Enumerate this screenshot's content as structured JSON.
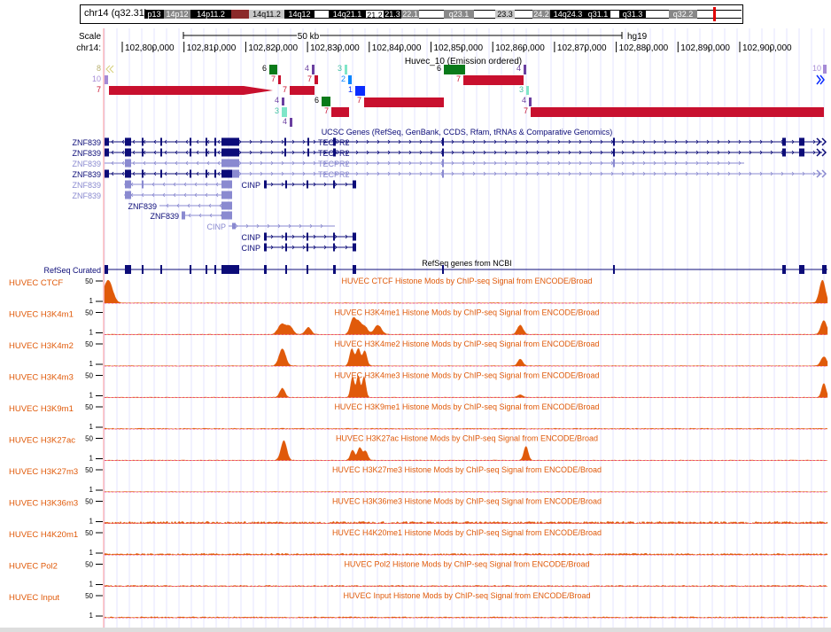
{
  "ideogram": {
    "label": "chr14 (q32.31)",
    "bands": [
      {
        "name": "p13",
        "x": 72,
        "w": 22,
        "fill": "#000",
        "text": "#fff"
      },
      {
        "name": "14p12",
        "x": 94,
        "w": 30,
        "fill": "#888",
        "text": "#fff"
      },
      {
        "name": "14p11.2",
        "x": 124,
        "w": 46,
        "fill": "#000",
        "text": "#fff"
      },
      {
        "name": "",
        "x": 170,
        "w": 20,
        "fill": "#8b2a2a",
        "text": "#fff"
      },
      {
        "name": "14q11.2",
        "x": 190,
        "w": 40,
        "fill": "#c8c8c8",
        "text": "#000"
      },
      {
        "name": "14q12",
        "x": 230,
        "w": 34,
        "fill": "#000",
        "text": "#fff"
      },
      {
        "name": "",
        "x": 264,
        "w": 16,
        "fill": "#fff",
        "text": "#000"
      },
      {
        "name": "14q21.1",
        "x": 280,
        "w": 42,
        "fill": "#000",
        "text": "#fff"
      },
      {
        "name": "21.2",
        "x": 322,
        "w": 20,
        "fill": "#fff",
        "text": "#000"
      },
      {
        "name": "21.3",
        "x": 342,
        "w": 20,
        "fill": "#000",
        "text": "#fff"
      },
      {
        "name": "22.1",
        "x": 362,
        "w": 20,
        "fill": "#888",
        "text": "#fff"
      },
      {
        "name": "",
        "x": 382,
        "w": 28,
        "fill": "#fff",
        "text": "#000"
      },
      {
        "name": "q23.1",
        "x": 410,
        "w": 34,
        "fill": "#888",
        "text": "#fff"
      },
      {
        "name": "",
        "x": 444,
        "w": 24,
        "fill": "#fff",
        "text": "#000"
      },
      {
        "name": "23.3",
        "x": 468,
        "w": 22,
        "fill": "#c8c8c8",
        "text": "#000"
      },
      {
        "name": "",
        "x": 490,
        "w": 20,
        "fill": "#fff",
        "text": "#000"
      },
      {
        "name": "24.2",
        "x": 510,
        "w": 20,
        "fill": "#888",
        "text": "#fff"
      },
      {
        "name": "14q24.3",
        "x": 530,
        "w": 40,
        "fill": "#000",
        "text": "#fff"
      },
      {
        "name": "q31.1",
        "x": 570,
        "w": 28,
        "fill": "#000",
        "text": "#fff"
      },
      {
        "name": "",
        "x": 598,
        "w": 10,
        "fill": "#fff",
        "text": "#000"
      },
      {
        "name": "q31.3",
        "x": 608,
        "w": 30,
        "fill": "#000",
        "text": "#fff"
      },
      {
        "name": "",
        "x": 638,
        "w": 26,
        "fill": "#fff",
        "text": "#000"
      },
      {
        "name": "q32.2",
        "x": 664,
        "w": 32,
        "fill": "#888",
        "text": "#fff"
      },
      {
        "name": "",
        "x": 696,
        "w": 50,
        "fill": "#fff",
        "text": "#000"
      }
    ],
    "highlight_color": "#e00000"
  },
  "scale": {
    "label": "Scale",
    "chrom_label": "chr14:",
    "bar_label": "50 kb",
    "assembly": "hg19",
    "ticks": [
      "102,800,000",
      "102,810,000",
      "102,820,000",
      "102,830,000",
      "102,840,000",
      "102,850,000",
      "102,860,000",
      "102,870,000",
      "102,880,000",
      "102,890,000",
      "102,900,000"
    ]
  },
  "segmentation": {
    "title": "Huvec_10 (Emission ordered)",
    "colors": {
      "1": "#0a2bff",
      "2": "#0a86ff",
      "3": "#7fe6c8",
      "4": "#6a3fa0",
      "6": "#0a7a1a",
      "7": "#c8102e",
      "8": "#d6cf7a",
      "10": "#a58ad6"
    }
  },
  "ucsc_genes": {
    "title": "UCSC Genes (RefSeq, GenBank, CCDS, Rfam, tRNAs & Comparative Genomics)",
    "left_labels": [
      "ZNF839",
      "ZNF839",
      "ZNF839",
      "ZNF839",
      "ZNF839",
      "ZNF839",
      "ZNF839",
      "ZNF839"
    ],
    "right_labels": [
      "TECPR2",
      "TECPR2",
      "TECPR2",
      "TECPR2"
    ],
    "cinp_labels": [
      "CINP",
      "CINP",
      "CINP",
      "CINP"
    ]
  },
  "refseq": {
    "label": "RefSeq Curated",
    "title": "RefSeq genes from NCBI"
  },
  "signal_tracks": [
    {
      "label": "HUVEC CTCF",
      "title": "HUVEC CTCF Histone Mods by ChIP-seq Signal from ENCODE/Broad",
      "max": "50",
      "min": "1",
      "peaks": [
        [
          0.5,
          1.0,
          1.2
        ],
        [
          99.3,
          1.0,
          0.8
        ]
      ],
      "noise": 0.05
    },
    {
      "label": "HUVEC H3K4m1",
      "title": "HUVEC H3K4me1 Histone Mods by ChIP-seq Signal from ENCODE/Broad",
      "max": "50",
      "min": "1",
      "peaks": [
        [
          24.5,
          0.45,
          1.0
        ],
        [
          25.6,
          0.35,
          0.9
        ],
        [
          28.2,
          0.3,
          0.8
        ],
        [
          34.4,
          0.7,
          0.8
        ],
        [
          35.2,
          0.45,
          0.7
        ],
        [
          36.0,
          0.35,
          0.8
        ],
        [
          37.8,
          0.4,
          1.0
        ],
        [
          57.5,
          0.4,
          0.8
        ],
        [
          99.5,
          0.6,
          0.8
        ]
      ],
      "noise": 0.05
    },
    {
      "label": "HUVEC H3K4m2",
      "title": "HUVEC H3K4me2 Histone Mods by ChIP-seq Signal from ENCODE/Broad",
      "max": "50",
      "min": "1",
      "peaks": [
        [
          24.6,
          0.75,
          0.9
        ],
        [
          34.2,
          0.75,
          0.6
        ],
        [
          35.1,
          0.75,
          0.6
        ],
        [
          36.0,
          0.65,
          0.6
        ],
        [
          57.5,
          0.3,
          0.7
        ],
        [
          99.5,
          0.4,
          0.8
        ]
      ],
      "noise": 0.05
    },
    {
      "label": "HUVEC H3K4m3",
      "title": "HUVEC H3K4me3 Histone Mods by ChIP-seq Signal from ENCODE/Broad",
      "max": "50",
      "min": "1",
      "peaks": [
        [
          24.6,
          0.4,
          0.7
        ],
        [
          34.3,
          0.9,
          0.5
        ],
        [
          35.1,
          0.95,
          0.5
        ],
        [
          35.9,
          0.9,
          0.5
        ],
        [
          57.5,
          0.12,
          0.7
        ],
        [
          99.5,
          0.6,
          0.6
        ]
      ],
      "noise": 0.05
    },
    {
      "label": "HUVEC H3K9m1",
      "title": "HUVEC H3K9me1 Histone Mods by ChIP-seq Signal from ENCODE/Broad",
      "max": "50",
      "min": "1",
      "peaks": [],
      "noise": 0.08
    },
    {
      "label": "HUVEC H3K27ac",
      "title": "HUVEC H3K27ac Histone Mods by ChIP-seq Signal from ENCODE/Broad",
      "max": "50",
      "min": "1",
      "peaks": [
        [
          24.8,
          0.85,
          0.8
        ],
        [
          34.3,
          0.45,
          0.6
        ],
        [
          35.3,
          0.55,
          0.6
        ],
        [
          36.1,
          0.4,
          0.6
        ],
        [
          58.3,
          0.6,
          0.6
        ]
      ],
      "noise": 0.05
    },
    {
      "label": "HUVEC H3K27m3",
      "title": "HUVEC H3K27me3 Histone Mods by ChIP-seq Signal from ENCODE/Broad",
      "max": "50",
      "min": "1",
      "peaks": [],
      "noise": 0.05
    },
    {
      "label": "HUVEC H3K36m3",
      "title": "HUVEC H3K36me3 Histone Mods by ChIP-seq Signal from ENCODE/Broad",
      "max": "50",
      "min": "1",
      "peaks": [],
      "noise": 0.18
    },
    {
      "label": "HUVEC H4K20m1",
      "title": "HUVEC H4K20me1 Histone Mods by ChIP-seq Signal from ENCODE/Broad",
      "max": "50",
      "min": "1",
      "peaks": [],
      "noise": 0.14
    },
    {
      "label": "HUVEC Pol2",
      "title": "HUVEC Pol2 Histone Mods by ChIP-seq Signal from ENCODE/Broad",
      "max": "50",
      "min": "1",
      "peaks": [],
      "noise": 0.1
    },
    {
      "label": "HUVEC Input",
      "title": "HUVEC Input Histone Mods by ChIP-seq Signal from ENCODE/Broad",
      "max": "50",
      "min": "1",
      "peaks": [],
      "noise": 0.1
    }
  ],
  "colors": {
    "signal": "#e05a0a",
    "label": "#e05a0a",
    "gene_dark": "#0c0c78",
    "gene_light": "#8a8ad0",
    "baseline": "#ff00ff",
    "grid": "#c8c8ff"
  }
}
